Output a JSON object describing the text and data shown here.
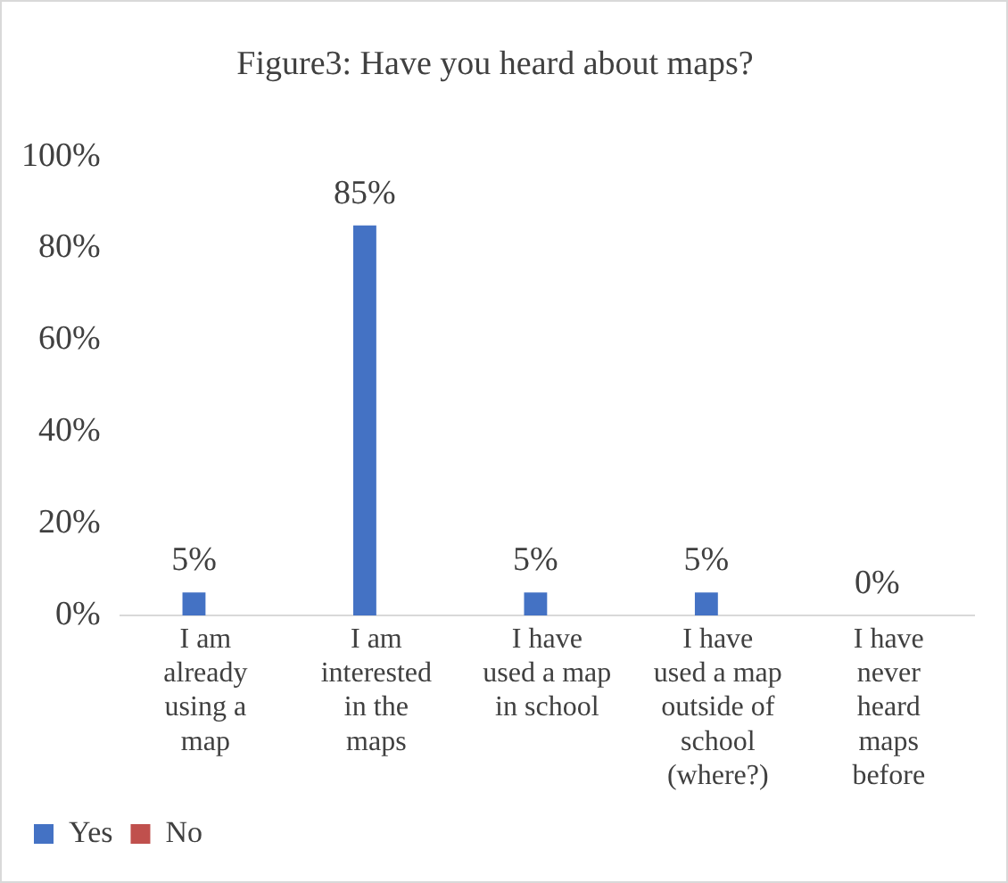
{
  "chart_data": {
    "type": "bar",
    "title": "Figure3: Have you heard about maps?",
    "categories": [
      "I am already using a map",
      "I am interested in the maps",
      "I have used a map in school",
      "I have used a map outside of school (where?)",
      "I have never heard maps before"
    ],
    "series": [
      {
        "name": "Yes",
        "color": "#4472c4",
        "values": [
          5,
          85,
          5,
          5,
          0
        ],
        "value_labels": [
          "5%",
          "85%",
          "5%",
          "5%",
          "0%"
        ]
      },
      {
        "name": "No",
        "color": "#c0504d",
        "values": [
          0,
          0,
          0,
          0,
          0
        ]
      }
    ],
    "ylim": [
      0,
      100
    ],
    "yticks": [
      {
        "value": 0,
        "label": "0%"
      },
      {
        "value": 20,
        "label": "20%"
      },
      {
        "value": 40,
        "label": "40%"
      },
      {
        "value": 60,
        "label": "60%"
      },
      {
        "value": 80,
        "label": "80%"
      },
      {
        "value": 100,
        "label": "100%"
      }
    ],
    "grid": false,
    "legend": "bottom left"
  }
}
